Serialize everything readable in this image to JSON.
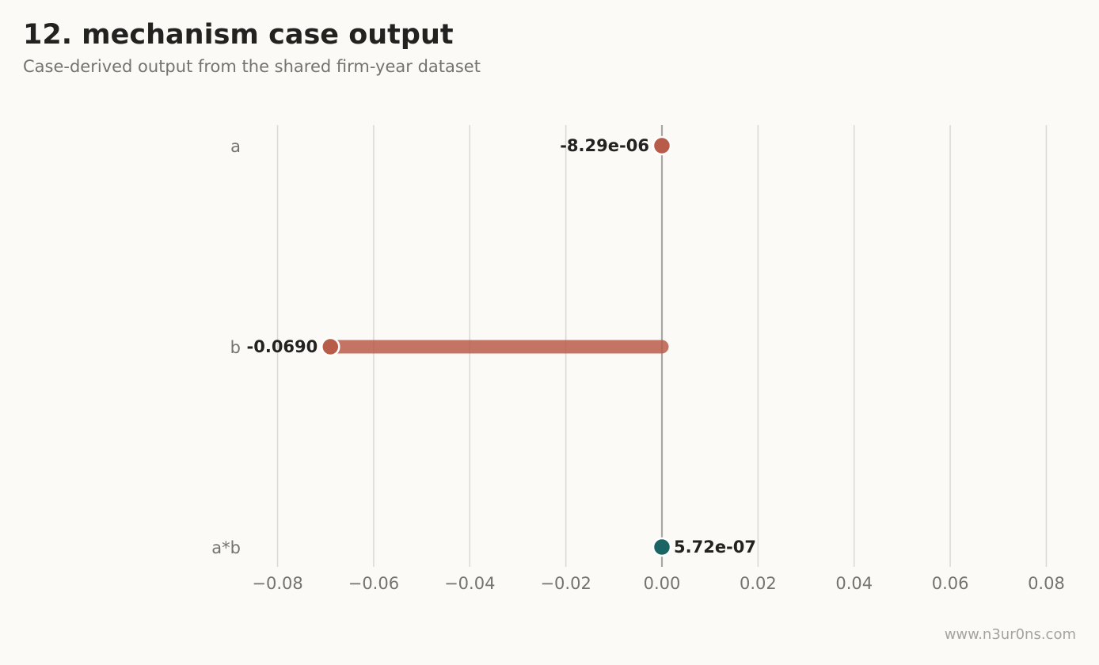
{
  "title": "12. mechanism case output",
  "subtitle": "Case-derived output from the shared firm-year dataset",
  "watermark": "www.n3ur0ns.com",
  "colors": {
    "background": "#fbfaf7",
    "negative": "#b85c4a",
    "positive": "#1a6464",
    "grid": "#dcdad5",
    "zero_line": "#a8a6a2",
    "text_dark": "#222220",
    "text_muted": "#737370"
  },
  "chart_data": {
    "type": "lollipop",
    "orientation": "horizontal",
    "categories": [
      "a",
      "b",
      "a*b"
    ],
    "values": [
      -8.29e-06,
      -0.069,
      5.72e-07
    ],
    "value_labels": [
      "-8.29e-06",
      "-0.0690",
      "5.72e-07"
    ],
    "xlim": [
      -0.088,
      0.088
    ],
    "xticks": [
      -0.08,
      -0.06,
      -0.04,
      -0.02,
      0.0,
      0.02,
      0.04,
      0.06,
      0.08
    ],
    "xtick_labels": [
      "−0.08",
      "−0.06",
      "−0.04",
      "−0.02",
      "0.00",
      "0.02",
      "0.04",
      "0.06",
      "0.08"
    ],
    "grid": "vertical",
    "legend": "none"
  }
}
